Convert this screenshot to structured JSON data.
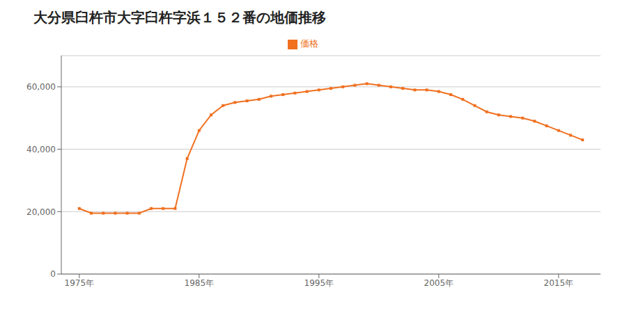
{
  "chart_data": {
    "type": "line",
    "title": "大分県臼杵市大字臼杵字浜１５２番の地価推移",
    "x": [
      1975,
      1976,
      1977,
      1978,
      1979,
      1980,
      1981,
      1982,
      1983,
      1984,
      1985,
      1986,
      1987,
      1988,
      1989,
      1990,
      1991,
      1992,
      1993,
      1994,
      1995,
      1996,
      1997,
      1998,
      1999,
      2000,
      2001,
      2002,
      2003,
      2004,
      2005,
      2006,
      2007,
      2008,
      2009,
      2010,
      2011,
      2012,
      2013,
      2014,
      2015,
      2016,
      2017
    ],
    "series": [
      {
        "name": "価格",
        "color": "#F07020",
        "marker": "square",
        "line_style": "solid",
        "values": [
          21000,
          19500,
          19500,
          19500,
          19500,
          19500,
          21000,
          21000,
          21000,
          37000,
          46000,
          51000,
          54000,
          55000,
          55500,
          56000,
          57000,
          57500,
          58000,
          58500,
          59000,
          59500,
          60000,
          60500,
          61000,
          60500,
          60000,
          59500,
          59000,
          59000,
          58500,
          57500,
          56000,
          54000,
          52000,
          51000,
          50500,
          50000,
          49000,
          47500,
          46000,
          44500,
          43000
        ]
      }
    ],
    "xlim": [
      1973.5,
      2018.5
    ],
    "xticks": [
      {
        "value": 1975,
        "label": "1975年"
      },
      {
        "value": 1985,
        "label": "1985年"
      },
      {
        "value": 1995,
        "label": "1995年"
      },
      {
        "value": 2005,
        "label": "2005年"
      },
      {
        "value": 2015,
        "label": "2015年"
      }
    ],
    "ylim": [
      0,
      70000
    ],
    "yticks": [
      0,
      {
        "value": 20000,
        "label": "20,000"
      },
      {
        "value": 40000,
        "label": "40,000"
      },
      {
        "value": 60000,
        "label": "60,000"
      }
    ],
    "grid": "y",
    "legend": "top"
  }
}
